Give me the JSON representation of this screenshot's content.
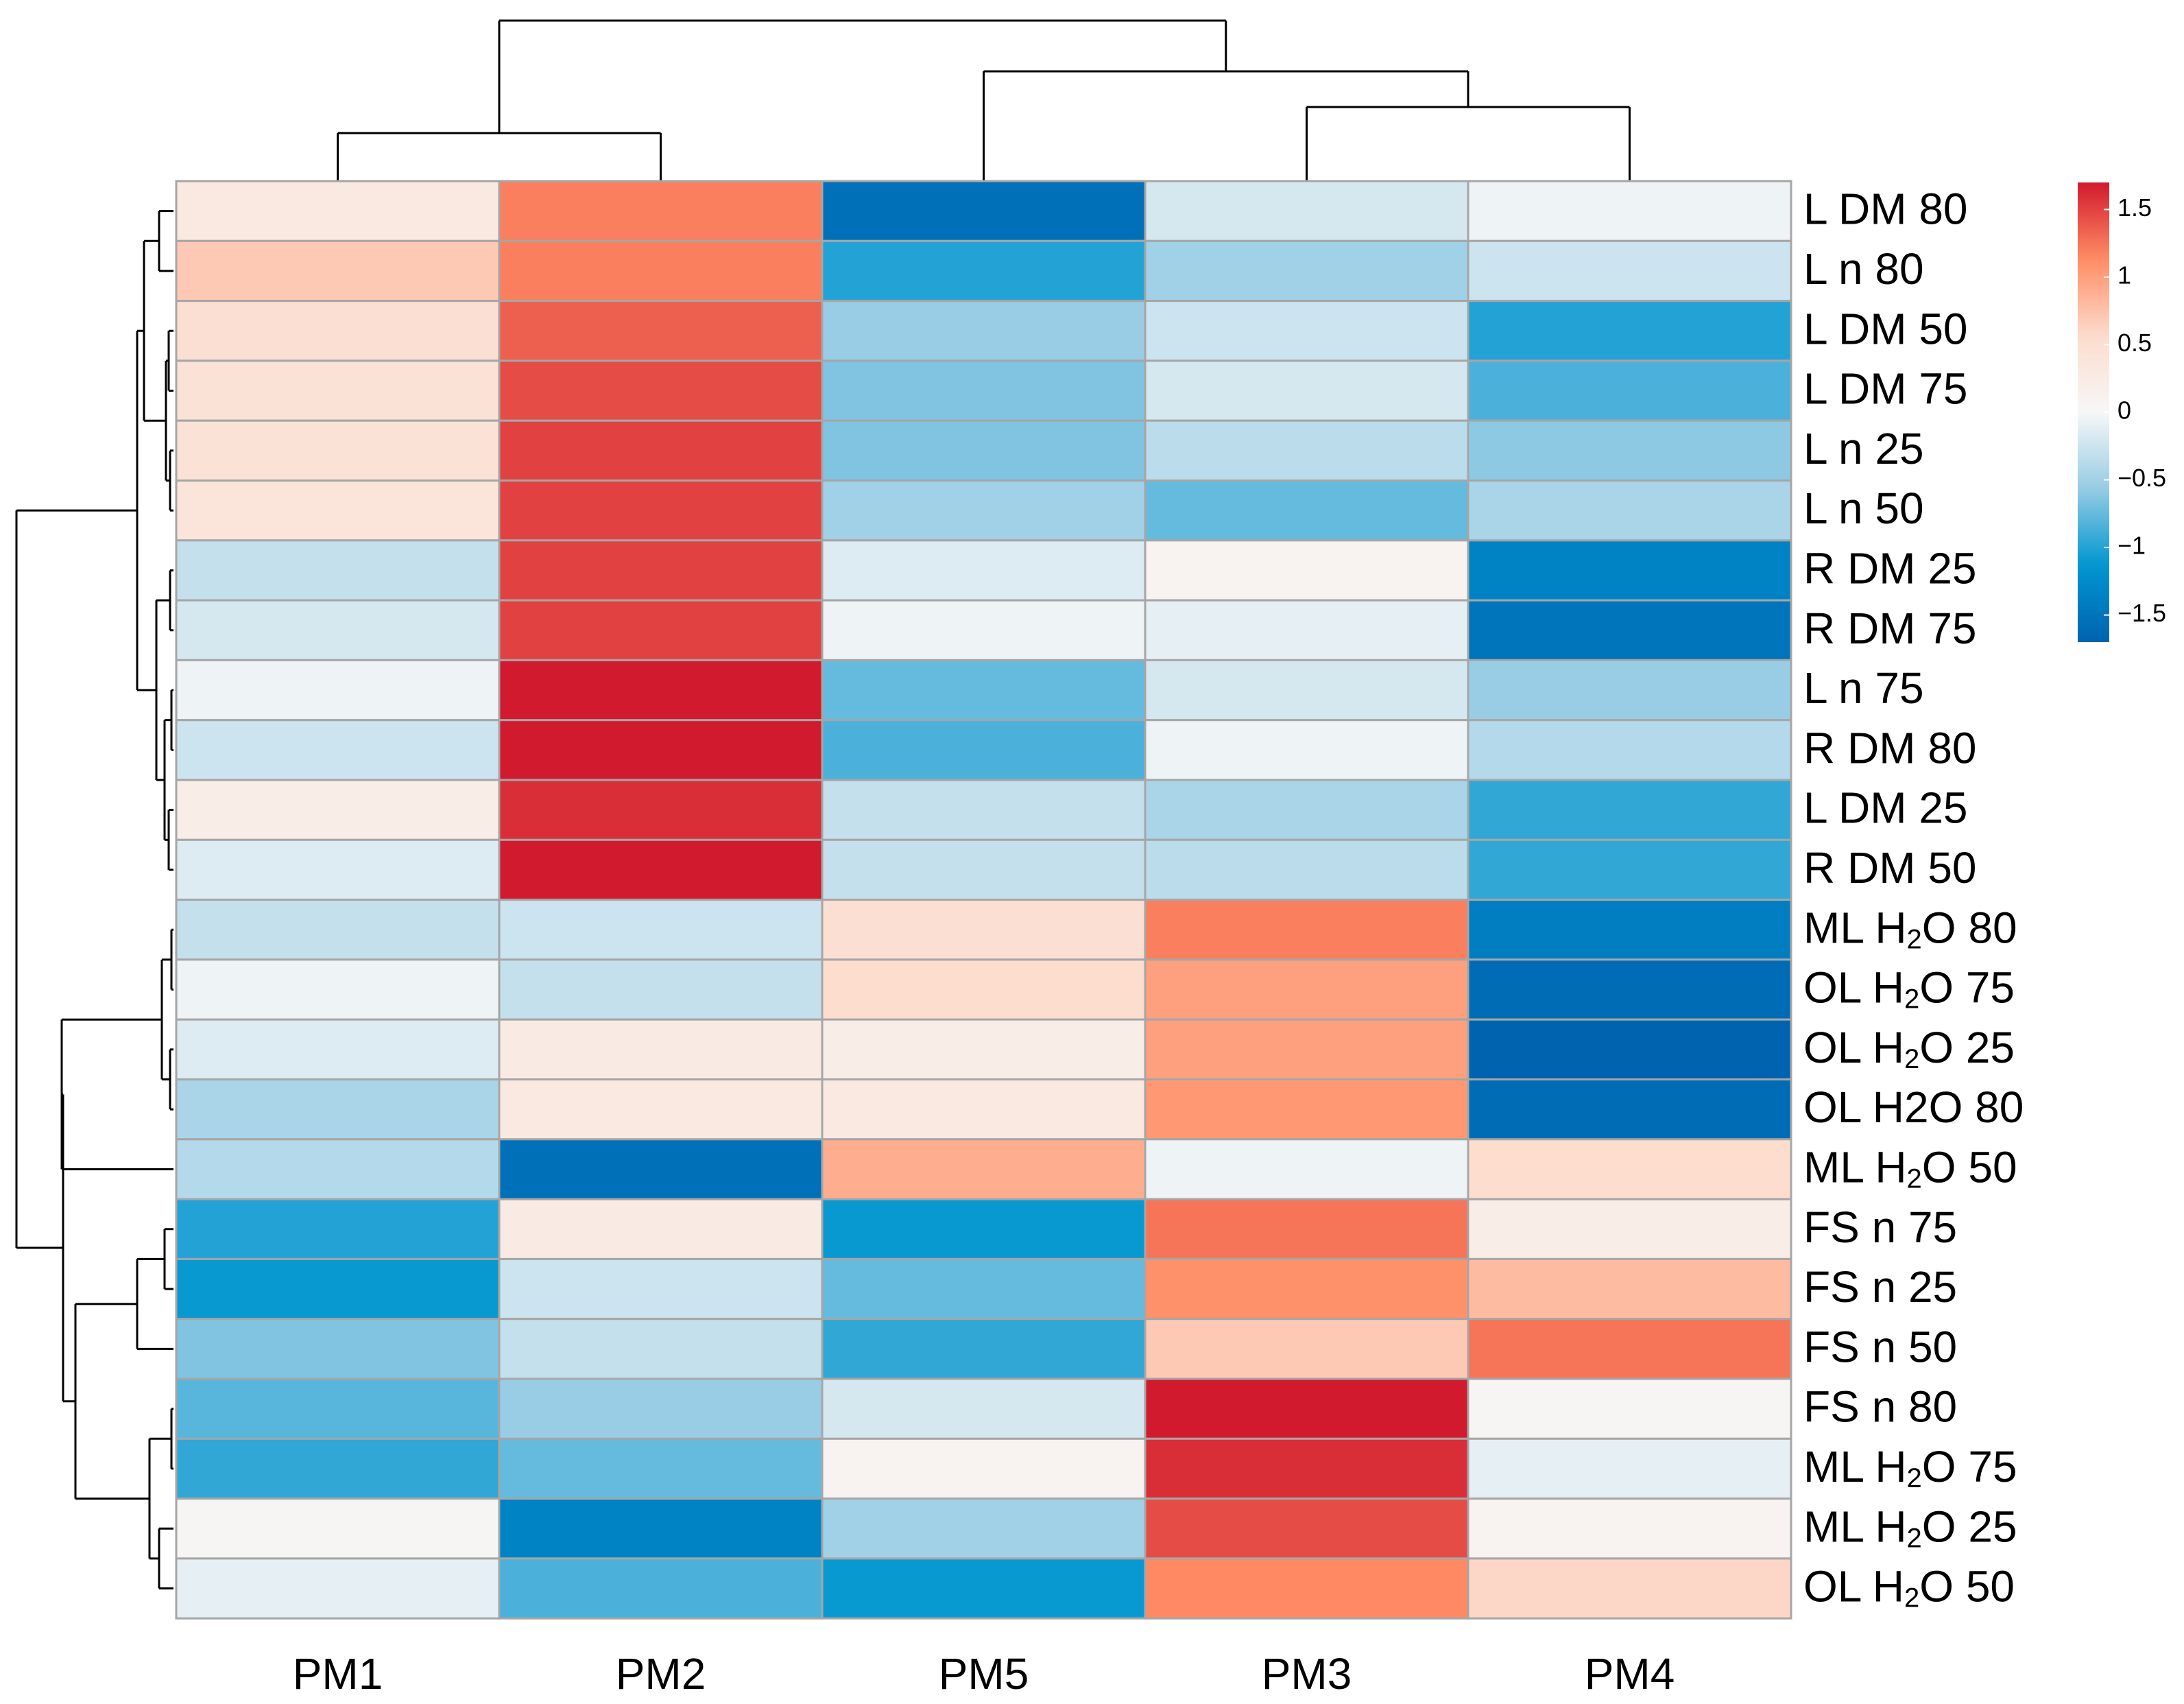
{
  "chart_data": {
    "type": "heatmap",
    "title": "",
    "columns": [
      "PM1",
      "PM2",
      "PM5",
      "PM3",
      "PM4"
    ],
    "rows": [
      {
        "base": "L DM 80",
        "sub": "",
        "tail": "",
        "values": [
          0.3,
          1.2,
          -1.55,
          -0.2,
          -0.05
        ]
      },
      {
        "base": "L n 80",
        "sub": "",
        "tail": "",
        "values": [
          0.7,
          1.2,
          -1.0,
          -0.5,
          -0.25
        ]
      },
      {
        "base": "L DM 50",
        "sub": "",
        "tail": "",
        "values": [
          0.5,
          1.35,
          -0.55,
          -0.25,
          -1.0
        ]
      },
      {
        "base": "L DM 75",
        "sub": "",
        "tail": "",
        "values": [
          0.45,
          1.45,
          -0.65,
          -0.2,
          -0.85
        ]
      },
      {
        "base": "L n 25",
        "sub": "",
        "tail": "",
        "values": [
          0.45,
          1.5,
          -0.65,
          -0.35,
          -0.6
        ]
      },
      {
        "base": "L n 50",
        "sub": "",
        "tail": "",
        "values": [
          0.4,
          1.5,
          -0.5,
          -0.75,
          -0.45
        ]
      },
      {
        "base": "R DM 25",
        "sub": "",
        "tail": "",
        "values": [
          -0.3,
          1.5,
          -0.15,
          0.1,
          -1.35
        ]
      },
      {
        "base": "R DM 75",
        "sub": "",
        "tail": "",
        "values": [
          -0.2,
          1.5,
          -0.05,
          -0.1,
          -1.5
        ]
      },
      {
        "base": "L n 75",
        "sub": "",
        "tail": "",
        "values": [
          -0.05,
          1.7,
          -0.75,
          -0.2,
          -0.55
        ]
      },
      {
        "base": "R DM 80",
        "sub": "",
        "tail": "",
        "values": [
          -0.25,
          1.7,
          -0.85,
          -0.05,
          -0.4
        ]
      },
      {
        "base": "L DM 25",
        "sub": "",
        "tail": "",
        "values": [
          0.2,
          1.6,
          -0.3,
          -0.45,
          -0.95
        ]
      },
      {
        "base": "R DM 50",
        "sub": "",
        "tail": "",
        "values": [
          -0.15,
          1.7,
          -0.3,
          -0.35,
          -0.95
        ]
      },
      {
        "base": "ML H",
        "sub": "2",
        "tail": "O 80",
        "values": [
          -0.3,
          -0.25,
          0.5,
          1.2,
          -1.4
        ]
      },
      {
        "base": "OL H",
        "sub": "2",
        "tail": "O 75",
        "values": [
          -0.05,
          -0.3,
          0.55,
          1.0,
          -1.6
        ]
      },
      {
        "base": "OL H",
        "sub": "2",
        "tail": "O 25",
        "values": [
          -0.15,
          0.25,
          0.2,
          1.0,
          -1.75
        ]
      },
      {
        "base": "OL H2O 80",
        "sub": "",
        "tail": "",
        "values": [
          -0.45,
          0.3,
          0.3,
          1.05,
          -1.6
        ]
      },
      {
        "base": "ML H",
        "sub": "2",
        "tail": "O 50",
        "values": [
          -0.4,
          -1.55,
          0.9,
          -0.05,
          0.55
        ]
      },
      {
        "base": "FS n 75",
        "sub": "",
        "tail": "",
        "values": [
          -1.0,
          0.25,
          -1.1,
          1.25,
          0.2
        ]
      },
      {
        "base": "FS n 25",
        "sub": "",
        "tail": "",
        "values": [
          -1.1,
          -0.25,
          -0.75,
          1.1,
          0.8
        ]
      },
      {
        "base": "FS n 50",
        "sub": "",
        "tail": "",
        "values": [
          -0.65,
          -0.3,
          -0.95,
          0.7,
          1.25
        ]
      },
      {
        "base": "FS n 80",
        "sub": "",
        "tail": "",
        "values": [
          -0.8,
          -0.55,
          -0.2,
          1.7,
          0.05
        ]
      },
      {
        "base": "ML H",
        "sub": "2",
        "tail": "O 75",
        "values": [
          -0.95,
          -0.75,
          0.1,
          1.6,
          -0.1
        ]
      },
      {
        "base": "ML H",
        "sub": "2",
        "tail": "O 25",
        "values": [
          0.05,
          -1.35,
          -0.5,
          1.45,
          0.1
        ]
      },
      {
        "base": "OL H",
        "sub": "2",
        "tail": "O 50",
        "values": [
          -0.1,
          -0.85,
          -1.1,
          1.15,
          0.6
        ]
      }
    ],
    "color_scale": {
      "domain": [
        -1.7,
        1.7
      ],
      "stops": [
        "#2166AC",
        "#4393C3",
        "#92C5DE",
        "#D1E5F0",
        "#F7F7F7",
        "#FDDBC7",
        "#F4A582",
        "#D6604D",
        "#B2182B"
      ],
      "stop_colors_used": [
        "#0063B0",
        "#0096D0",
        "#96CCE4",
        "#F7F7F7",
        "#FCDCCD",
        "#FF8C64",
        "#D11A2E"
      ],
      "ticks": [
        1.5,
        1,
        0.5,
        0,
        -0.5,
        -1,
        -1.5
      ],
      "tick_labels": [
        "1.5",
        "1",
        "0.5",
        "0",
        "−0.5",
        "−1",
        "−1.5"
      ]
    },
    "column_dendrogram": "((PM1,PM2),(PM5,(PM3,PM4)))",
    "row_dendrogram": "((rows 1-12),((rows 13-17),(rows 18-24)))",
    "legend_position": "right",
    "grid": true,
    "xlabel": "",
    "ylabel": ""
  }
}
